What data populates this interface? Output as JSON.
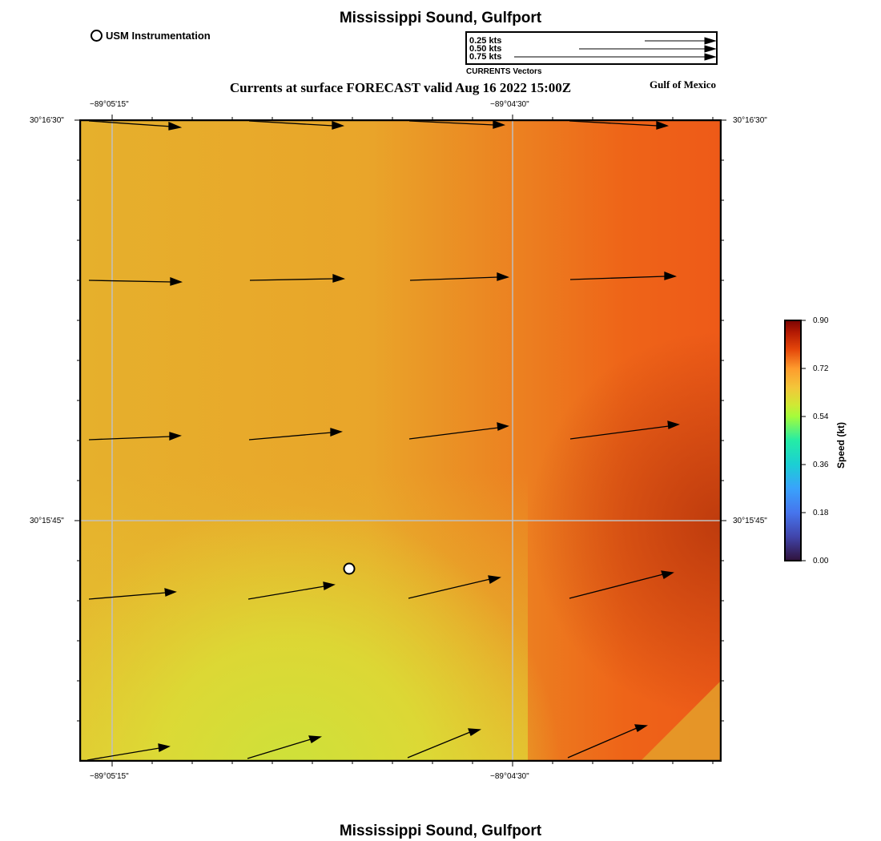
{
  "header": {
    "title": "Mississippi Sound, Gulfport",
    "subtitle": "Currents at surface FORECAST valid Aug 16 2022 15:00Z",
    "region": "Gulf of Mexico",
    "usm_label": "USM Instrumentation"
  },
  "vector_legend": {
    "items": [
      {
        "label": "0.25 kts",
        "speed": 0.25
      },
      {
        "label": "0.50 kts",
        "speed": 0.5
      },
      {
        "label": "0.75 kts",
        "speed": 0.75
      }
    ],
    "caption": "CURRENTS Vectors"
  },
  "map": {
    "top_ticks": [
      "−89°05'15\"",
      "−89°04'30\""
    ],
    "bottom_ticks": [
      "−89°05'15\"",
      "−89°04'30\""
    ],
    "left_ticks": [
      "30°16'30\"",
      "30°15'45\""
    ],
    "right_ticks": [
      "30°16'30\"",
      "30°15'45\""
    ],
    "colors": {
      "speed_low": "#d6de3a",
      "speed_mid": "#e8a82a",
      "speed_high": "#ee5a18",
      "speed_max": "#c03a0c",
      "grid": "#c0c0c0",
      "frame": "#000000"
    }
  },
  "colorbar": {
    "title": "Speed (kt)",
    "labels": [
      "0.90",
      "0.72",
      "0.54",
      "0.36",
      "0.18",
      "0.00"
    ]
  },
  "footer": {
    "title": "Mississippi Sound, Gulfport"
  }
}
